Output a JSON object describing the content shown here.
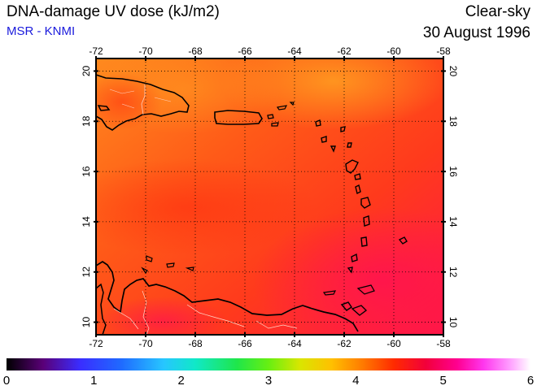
{
  "header": {
    "title": "DNA-damage UV dose (kJ/m2)",
    "source": "MSR - KNMI",
    "condition": "Clear-sky",
    "date": "30 August 1996"
  },
  "map": {
    "lon_labels": [
      "-72",
      "-70",
      "-68",
      "-66",
      "-64",
      "-62",
      "-60",
      "-58"
    ],
    "lat_labels": [
      "20",
      "18",
      "16",
      "14",
      "12",
      "10"
    ],
    "lon_range": [
      -72,
      -58
    ],
    "lat_range": [
      9.5,
      20.5
    ],
    "grid": "dotted, every 2 degrees"
  },
  "colorbar": {
    "labels": [
      "0",
      "1",
      "2",
      "3",
      "4",
      "5",
      "6"
    ],
    "range": [
      0,
      6
    ]
  },
  "colors": {
    "source_text": "#1a1adc",
    "field_low": "#ff8c1a",
    "field_mid": "#ff3c14",
    "field_high": "#ff1a4a"
  }
}
